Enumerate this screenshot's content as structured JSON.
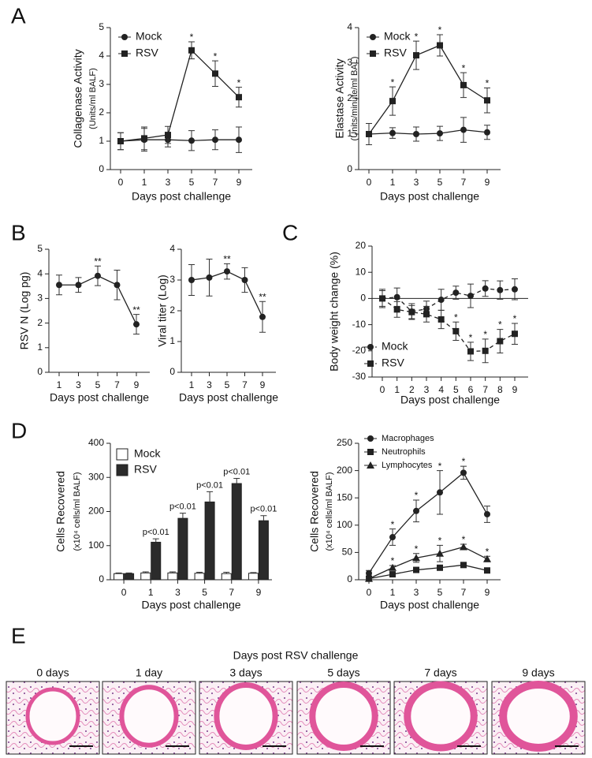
{
  "panel_labels": [
    "A",
    "B",
    "C",
    "D",
    "E"
  ],
  "chart_data": [
    {
      "type": "line",
      "ylabel": "Collagenase Activity",
      "ylabel_sub": "(Units/ml BALF)",
      "xlabel": "Days post challenge",
      "categories": [
        "0",
        "1",
        "3",
        "5",
        "7",
        "9"
      ],
      "ylim": [
        0,
        5
      ],
      "yticks": [
        0,
        1,
        2,
        3,
        4,
        5
      ],
      "legend_loc": "upper left",
      "series": [
        {
          "name": "Mock",
          "marker": "circle",
          "color": "#222222",
          "values": [
            1,
            1.05,
            1.05,
            1.02,
            1.05,
            1.05
          ],
          "errors": [
            0.3,
            0.4,
            0.25,
            0.35,
            0.35,
            0.45
          ],
          "stars": [
            null,
            null,
            null,
            null,
            null,
            null
          ]
        },
        {
          "name": "RSV",
          "marker": "square",
          "color": "#222222",
          "values": [
            1,
            1.1,
            1.22,
            4.2,
            3.38,
            2.55
          ],
          "errors": [
            0.3,
            0.4,
            0.3,
            0.3,
            0.45,
            0.35
          ],
          "stars": [
            null,
            null,
            null,
            "*",
            "*",
            "*"
          ]
        }
      ]
    },
    {
      "type": "line",
      "ylabel": "Elastase Activity",
      "ylabel_sub": "(Units/minute/ml BAL)",
      "xlabel": "Days post challenge",
      "categories": [
        "0",
        "1",
        "3",
        "5",
        "7",
        "9"
      ],
      "ylim": [
        0,
        4
      ],
      "yticks": [
        0,
        1,
        2,
        3,
        4
      ],
      "legend_loc": "upper left",
      "series": [
        {
          "name": "Mock",
          "marker": "circle",
          "color": "#222222",
          "values": [
            1,
            1.03,
            1,
            1.02,
            1.12,
            1.05
          ],
          "errors": [
            0.3,
            0.15,
            0.2,
            0.2,
            0.35,
            0.2
          ],
          "stars": [
            null,
            null,
            null,
            null,
            null,
            null
          ]
        },
        {
          "name": "RSV",
          "marker": "square",
          "color": "#222222",
          "values": [
            1,
            1.93,
            3.22,
            3.5,
            2.38,
            1.95
          ],
          "errors": [
            0.3,
            0.4,
            0.4,
            0.3,
            0.35,
            0.35
          ],
          "stars": [
            null,
            "*",
            "*",
            "*",
            "*",
            "*"
          ]
        }
      ]
    },
    {
      "type": "line",
      "ylabel": "RSV N (Log pg)",
      "xlabel": "Days post challenge",
      "categories": [
        "1",
        "3",
        "5",
        "7",
        "9"
      ],
      "ylim": [
        0,
        5
      ],
      "yticks": [
        0,
        1,
        2,
        3,
        4,
        5
      ],
      "series": [
        {
          "marker": "circle",
          "color": "#222222",
          "values": [
            3.55,
            3.55,
            3.92,
            3.55,
            1.95
          ],
          "errors": [
            0.4,
            0.3,
            0.4,
            0.6,
            0.4
          ],
          "stars": [
            null,
            null,
            "**",
            null,
            "**"
          ]
        }
      ]
    },
    {
      "type": "line",
      "ylabel": "Viral titer (Log)",
      "xlabel": "Days post challenge",
      "categories": [
        "1",
        "3",
        "5",
        "7",
        "9"
      ],
      "ylim": [
        0,
        4
      ],
      "yticks": [
        0,
        1,
        2,
        3,
        4
      ],
      "series": [
        {
          "marker": "circle",
          "color": "#222222",
          "values": [
            3,
            3.08,
            3.28,
            3,
            1.8
          ],
          "errors": [
            0.5,
            0.6,
            0.25,
            0.4,
            0.5
          ],
          "stars": [
            null,
            null,
            "**",
            null,
            "**"
          ]
        }
      ]
    },
    {
      "type": "line",
      "ylabel": "Body weight change (%)",
      "xlabel": "Days post challenge",
      "line_style": "dashed",
      "zero_line": true,
      "categories": [
        "0",
        "1",
        "2",
        "3",
        "4",
        "5",
        "6",
        "7",
        "8",
        "9"
      ],
      "ylim": [
        -30,
        20
      ],
      "yticks": [
        -30,
        -20,
        -10,
        0,
        10,
        20
      ],
      "legend_loc": "lower left",
      "series": [
        {
          "name": "Mock",
          "marker": "circle",
          "color": "#222222",
          "values": [
            0,
            0.5,
            -5,
            -4,
            -0.5,
            2.2,
            1,
            3.8,
            3.2,
            3.5
          ],
          "errors": [
            3.5,
            3.5,
            3,
            3,
            4,
            2.5,
            4.5,
            3,
            3.5,
            4
          ],
          "stars": [
            null,
            null,
            null,
            null,
            null,
            null,
            null,
            null,
            null,
            null
          ]
        },
        {
          "name": "RSV",
          "marker": "square",
          "color": "#222222",
          "values": [
            0,
            -4.2,
            -5.2,
            -6,
            -8,
            -12.5,
            -20.2,
            -20,
            -16.3,
            -13.5
          ],
          "errors": [
            3,
            3,
            2.5,
            3,
            3.5,
            3.5,
            3.5,
            4.5,
            4.5,
            4
          ],
          "stars": [
            null,
            null,
            null,
            null,
            null,
            "*",
            "*",
            "*",
            "*",
            "*"
          ]
        }
      ]
    },
    {
      "type": "bar",
      "ylabel": "Cells Recovered",
      "ylabel_sub": "(x10⁴ cells/ml BALF)",
      "xlabel": "Days post challenge",
      "categories": [
        "0",
        "1",
        "3",
        "5",
        "7",
        "9"
      ],
      "ylim": [
        0,
        400
      ],
      "yticks": [
        0,
        100,
        200,
        300,
        400
      ],
      "legend_loc": "upper left",
      "series": [
        {
          "name": "Mock",
          "color": "#ffffff",
          "values": [
            18,
            20,
            20,
            19,
            18,
            19
          ],
          "errors": [
            2,
            3,
            3,
            3,
            4,
            2
          ],
          "stars": [
            null,
            null,
            null,
            null,
            null,
            null
          ]
        },
        {
          "name": "RSV",
          "color": "#2b2b2b",
          "values": [
            18,
            110,
            180,
            228,
            282,
            173
          ],
          "errors": [
            2,
            10,
            15,
            30,
            15,
            15
          ],
          "stars": [
            null,
            "p<0.01",
            "p<0.01",
            "p<0.01",
            "p<0.01",
            "p<0.01"
          ]
        }
      ]
    },
    {
      "type": "line",
      "ylabel": "Cells Recovered",
      "ylabel_sub": "(x10⁴ cells/ml BALF)",
      "xlabel": "Days post challenge",
      "categories": [
        "0",
        "1",
        "3",
        "5",
        "7",
        "9"
      ],
      "ylim": [
        0,
        250
      ],
      "yticks": [
        0,
        50,
        100,
        150,
        200,
        250
      ],
      "legend_loc": "top",
      "series": [
        {
          "name": "Macrophages",
          "marker": "circle",
          "color": "#222222",
          "values": [
            12,
            78,
            126,
            160,
            196,
            120
          ],
          "errors": [
            5,
            15,
            20,
            40,
            12,
            15
          ],
          "stars": [
            null,
            "*",
            "*",
            "*",
            "*",
            null
          ]
        },
        {
          "name": "Neutrophils",
          "marker": "square",
          "color": "#222222",
          "values": [
            2,
            10,
            18,
            22,
            27,
            17
          ],
          "errors": [
            1,
            2,
            3,
            4,
            3,
            3
          ],
          "stars": [
            null,
            null,
            null,
            null,
            null,
            null
          ]
        },
        {
          "name": "Lymphocytes",
          "marker": "triangle",
          "color": "#222222",
          "values": [
            2,
            22,
            40,
            48,
            60,
            38
          ],
          "errors": [
            1,
            4,
            8,
            15,
            5,
            5
          ],
          "stars": [
            null,
            "*",
            "*",
            "*",
            "*",
            "*"
          ]
        }
      ]
    }
  ],
  "panel_e": {
    "title": "Days post RSV challenge",
    "labels": [
      "0 days",
      "1 day",
      "3 days",
      "5 days",
      "7 days",
      "9 days"
    ]
  }
}
